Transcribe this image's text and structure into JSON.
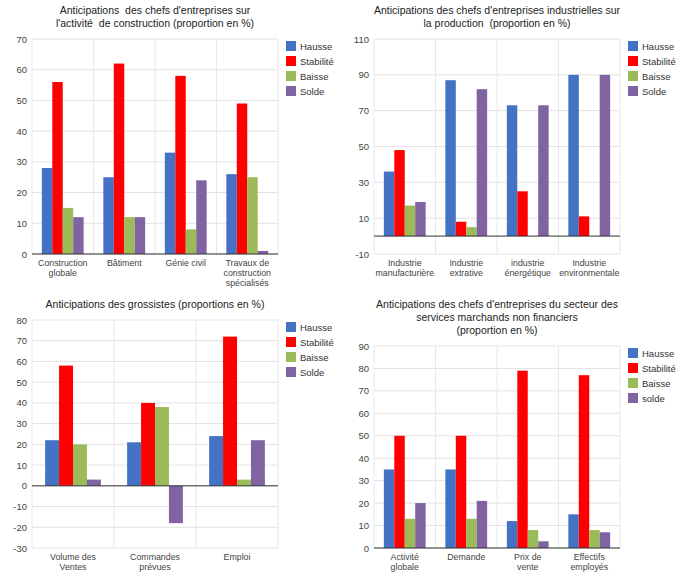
{
  "chart_data": [
    {
      "type": "bar",
      "title": "Anticipations  des chefs d'entreprises sur\nl'activité  de construction (proportion en %)",
      "categories": [
        "Construction\nglobale",
        "Bâtiment",
        "Génie civil",
        "Travaux de\nconstruction\nspécialisés"
      ],
      "series": [
        {
          "name": "Hausse",
          "color": "#4472C4",
          "values": [
            28,
            25,
            33,
            26
          ]
        },
        {
          "name": "Stabilité",
          "color": "#FF0000",
          "values": [
            56,
            62,
            58,
            49
          ]
        },
        {
          "name": "Baisse",
          "color": "#9BBB59",
          "values": [
            15,
            12,
            8,
            25
          ]
        },
        {
          "name": "Solde",
          "color": "#8064A2",
          "values": [
            12,
            12,
            24,
            1
          ]
        }
      ],
      "ylim": [
        0,
        70
      ],
      "yticks": [
        0,
        10,
        20,
        30,
        40,
        50,
        60,
        70
      ],
      "grid": true,
      "legend": "right"
    },
    {
      "type": "bar",
      "title": "Anticipations des chefs d'entreprises industrielles sur\nla production  (proportion en %)",
      "categories": [
        "Industrie\nmanufacturière",
        "Industrie\nextrative",
        "industrie\nénergétique",
        "Industrie\nenvironmentale"
      ],
      "series": [
        {
          "name": "Hausse",
          "color": "#4472C4",
          "values": [
            36,
            87,
            73,
            90
          ]
        },
        {
          "name": "Stabilité",
          "color": "#FF0000",
          "values": [
            48,
            8,
            25,
            11
          ]
        },
        {
          "name": "Baisse",
          "color": "#9BBB59",
          "values": [
            17,
            5,
            0,
            0
          ]
        },
        {
          "name": "Solde",
          "color": "#8064A2",
          "values": [
            19,
            82,
            73,
            90
          ]
        }
      ],
      "ylim": [
        -10,
        110
      ],
      "yticks": [
        -10,
        10,
        30,
        50,
        70,
        90,
        110
      ],
      "grid": true,
      "legend": "right"
    },
    {
      "type": "bar",
      "title": "Anticipations des grossistes (proportions en %)",
      "categories": [
        "Volume des\nVentes",
        "Commandes\nprévues",
        "Emploi"
      ],
      "series": [
        {
          "name": "Hausse",
          "color": "#4472C4",
          "values": [
            22,
            21,
            24
          ]
        },
        {
          "name": "Stabilité",
          "color": "#FF0000",
          "values": [
            58,
            40,
            72
          ]
        },
        {
          "name": "Baisse",
          "color": "#9BBB59",
          "values": [
            20,
            38,
            3
          ]
        },
        {
          "name": "Solde",
          "color": "#8064A2",
          "values": [
            3,
            -18,
            22
          ]
        }
      ],
      "ylim": [
        -30,
        80
      ],
      "yticks": [
        -30,
        -20,
        -10,
        0,
        10,
        20,
        30,
        40,
        50,
        60,
        70,
        80
      ],
      "grid": true,
      "legend": "right"
    },
    {
      "type": "bar",
      "title": "Anticipations des chefs d'entreprises du secteur des\nservices marchands non financiers\n(proportion en %)",
      "categories": [
        "Activité\nglobale",
        "Demande",
        "Prix de\nvente",
        "Effectifs\nemployés"
      ],
      "series": [
        {
          "name": "Hausse",
          "color": "#4472C4",
          "values": [
            35,
            35,
            12,
            15
          ]
        },
        {
          "name": "Stabilité",
          "color": "#FF0000",
          "values": [
            50,
            50,
            79,
            77
          ]
        },
        {
          "name": "Baisse",
          "color": "#9BBB59",
          "values": [
            13,
            13,
            8,
            8
          ]
        },
        {
          "name": "solde",
          "color": "#8064A2",
          "values": [
            20,
            21,
            3,
            7
          ]
        }
      ],
      "ylim": [
        0,
        90
      ],
      "yticks": [
        0,
        10,
        20,
        30,
        40,
        50,
        60,
        70,
        80,
        90
      ],
      "grid": true,
      "legend": "right"
    }
  ]
}
